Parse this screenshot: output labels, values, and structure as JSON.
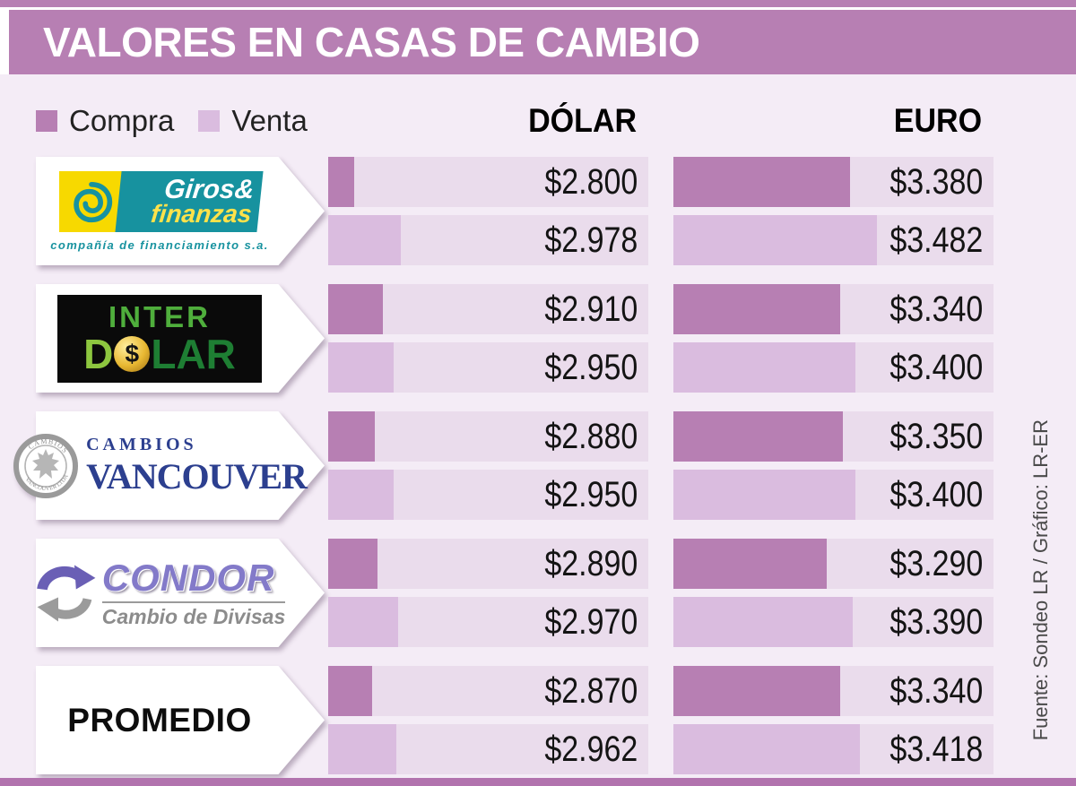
{
  "title": "VALORES EN CASAS DE CAMBIO",
  "source": "Fuente: Sondeo LR / Gráfico: LR-ER",
  "colors": {
    "primary": "#b77fb3",
    "venta": "#dabcdf",
    "track": "#eadcec",
    "background": "#f4ecf6"
  },
  "chart_data": {
    "type": "bar",
    "title": "VALORES EN CASAS DE CAMBIO",
    "orientation": "horizontal",
    "currency_prefix": "$",
    "legend": [
      {
        "label": "Compra",
        "color": "#b77fb3"
      },
      {
        "label": "Venta",
        "color": "#dabcdf"
      }
    ],
    "columns": [
      "DÓLAR",
      "EURO"
    ],
    "axis": {
      "base": 2700,
      "full_scale": 3930
    },
    "rows": [
      {
        "name": "Giros & Finanzas",
        "dolar": {
          "compra": 2800,
          "venta": 2978
        },
        "euro": {
          "compra": 3380,
          "venta": 3482
        }
      },
      {
        "name": "Inter Dólar",
        "dolar": {
          "compra": 2910,
          "venta": 2950
        },
        "euro": {
          "compra": 3340,
          "venta": 3400
        }
      },
      {
        "name": "Cambios Vancouver",
        "dolar": {
          "compra": 2880,
          "venta": 2950
        },
        "euro": {
          "compra": 3350,
          "venta": 3400
        }
      },
      {
        "name": "Condor Cambio de Divisas",
        "dolar": {
          "compra": 2890,
          "venta": 2970
        },
        "euro": {
          "compra": 3290,
          "venta": 3390
        }
      },
      {
        "name": "Promedio",
        "dolar": {
          "compra": 2870,
          "venta": 2962
        },
        "euro": {
          "compra": 3340,
          "venta": 3418
        }
      }
    ]
  },
  "logos": {
    "giros": {
      "line1": "Giros&",
      "line2": "finanzas",
      "subtitle": "compañía de financiamiento s.a."
    },
    "inter": {
      "line1": "INTER",
      "d": "D",
      "coin": "$",
      "lar": "LAR"
    },
    "vancouver": {
      "top": "CAMBIOS",
      "main": "VANCOUVER",
      "seal_top": "CAMBIOS",
      "seal_bottom": "VANCOUVER LTDA"
    },
    "condor": {
      "main": "CONDOR",
      "subtitle": "Cambio de Divisas"
    },
    "promedio": {
      "label": "PROMEDIO"
    }
  }
}
